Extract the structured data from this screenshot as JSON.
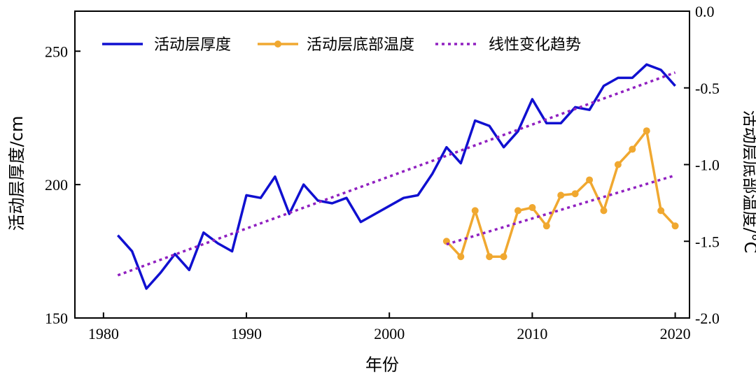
{
  "chart_data": {
    "type": "line",
    "xlabel": "年份",
    "ylabel_left": "活动层厚度/cm",
    "ylabel_right": "活动层底部温度/°C",
    "xlim": [
      1978,
      2021
    ],
    "ylim_left": [
      150,
      265
    ],
    "ylim_right": [
      -2.0,
      0.0
    ],
    "x_ticks": [
      1980,
      1990,
      2000,
      2010,
      2020
    ],
    "y_left_ticks": [
      150,
      200,
      250
    ],
    "y_right_ticks": [
      "-2.0",
      "-1.5",
      "-1.0",
      "-0.5",
      "0.0"
    ],
    "grid": false,
    "legend_position": "top",
    "legend": [
      "活动层厚度",
      "活动层底部温度",
      "线性变化趋势"
    ],
    "colors": {
      "thickness": "#1010d0",
      "temperature": "#f0a830",
      "trend": "#9020c0"
    },
    "series": [
      {
        "name": "活动层厚度",
        "axis": "left",
        "x": [
          1981,
          1982,
          1983,
          1984,
          1985,
          1986,
          1987,
          1988,
          1989,
          1990,
          1991,
          1992,
          1993,
          1994,
          1995,
          1996,
          1997,
          1998,
          2001,
          2002,
          2003,
          2004,
          2005,
          2006,
          2007,
          2008,
          2009,
          2010,
          2011,
          2012,
          2013,
          2014,
          2015,
          2016,
          2017,
          2018,
          2019,
          2020
        ],
        "values": [
          181,
          175,
          161,
          167,
          174,
          168,
          182,
          178,
          175,
          196,
          195,
          203,
          189,
          200,
          194,
          193,
          195,
          186,
          195,
          196,
          204,
          214,
          208,
          224,
          222,
          214,
          220,
          232,
          223,
          223,
          229,
          228,
          237,
          240,
          240,
          245,
          243,
          237
        ]
      },
      {
        "name": "活动层底部温度",
        "axis": "right",
        "x": [
          2004,
          2005,
          2006,
          2007,
          2008,
          2009,
          2010,
          2011,
          2012,
          2013,
          2014,
          2015,
          2016,
          2017,
          2018,
          2019,
          2020
        ],
        "values": [
          -1.5,
          -1.6,
          -1.3,
          -1.6,
          -1.6,
          -1.3,
          -1.28,
          -1.4,
          -1.2,
          -1.19,
          -1.1,
          -1.3,
          -1.0,
          -0.9,
          -0.78,
          -1.3,
          -1.4
        ]
      },
      {
        "name": "线性变化趋势",
        "axis": "left",
        "x": [
          1981,
          2020
        ],
        "values": [
          166,
          242
        ]
      },
      {
        "name": "线性变化趋势",
        "axis": "right",
        "x": [
          2004,
          2020
        ],
        "values": [
          -1.52,
          -1.07
        ]
      }
    ]
  }
}
